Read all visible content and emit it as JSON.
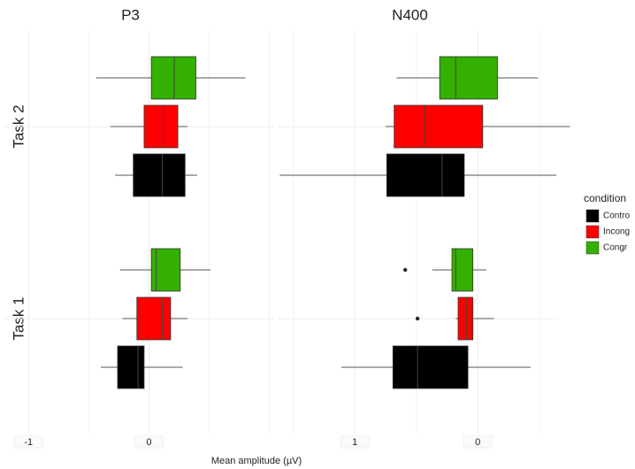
{
  "chart_data": {
    "type": "boxplot",
    "x_label": "Mean amplitude (µV)",
    "categories": [
      "Task 2",
      "Task 1"
    ],
    "legend_title": "condition",
    "legend_position": "right",
    "grid": true,
    "series": [
      {
        "name": "Contro",
        "color": "#000000"
      },
      {
        "name": "Incong",
        "color": "#ff0000"
      },
      {
        "name": "Congr",
        "color": "#33b000"
      }
    ],
    "panels": [
      {
        "title": "P3",
        "xlim": [
          -1.2,
          1.04
        ],
        "xticks": [
          -1,
          0
        ],
        "xminor_ticks": [
          -0.5,
          0.5,
          1
        ],
        "series": [
          {
            "stats": [
              {
                "min": -0.28,
                "q1": -0.13,
                "median": 0.11,
                "q3": 0.3,
                "max": 0.4,
                "outliers": []
              },
              {
                "min": -0.4,
                "q1": -0.26,
                "median": -0.09,
                "q3": -0.04,
                "max": 0.28,
                "outliers": []
              }
            ]
          },
          {
            "stats": [
              {
                "min": -0.32,
                "q1": -0.04,
                "median": 0.12,
                "q3": 0.24,
                "max": 0.32,
                "outliers": []
              },
              {
                "min": -0.22,
                "q1": -0.1,
                "median": 0.11,
                "q3": 0.18,
                "max": 0.32,
                "outliers": []
              }
            ]
          },
          {
            "stats": [
              {
                "min": -0.44,
                "q1": 0.02,
                "median": 0.21,
                "q3": 0.39,
                "max": 0.8,
                "outliers": []
              },
              {
                "min": -0.24,
                "q1": 0.02,
                "median": 0.06,
                "q3": 0.26,
                "max": 0.51,
                "outliers": []
              }
            ]
          }
        ]
      },
      {
        "title": "N400",
        "xlim": [
          1.62,
          -0.66
        ],
        "xticks": [
          1,
          0
        ],
        "xminor_ticks": [
          1.5,
          0.5,
          -0.5
        ],
        "series": [
          {
            "stats": [
              {
                "min": -0.64,
                "q1": 0.11,
                "median": 0.29,
                "q3": 0.74,
                "max": 1.61,
                "outliers": []
              },
              {
                "min": -0.43,
                "q1": 0.08,
                "median": 0.49,
                "q3": 0.69,
                "max": 1.11,
                "outliers": []
              }
            ]
          },
          {
            "stats": [
              {
                "min": -0.75,
                "q1": -0.04,
                "median": 0.43,
                "q3": 0.68,
                "max": 0.75,
                "outliers": []
              },
              {
                "min": -0.13,
                "q1": 0.04,
                "median": 0.09,
                "q3": 0.16,
                "max": 0.18,
                "outliers": [
                  0.49
                ]
              }
            ]
          },
          {
            "stats": [
              {
                "min": -0.49,
                "q1": -0.16,
                "median": 0.18,
                "q3": 0.31,
                "max": 0.66,
                "outliers": []
              },
              {
                "min": -0.07,
                "q1": 0.04,
                "median": 0.18,
                "q3": 0.21,
                "max": 0.37,
                "outliers": [
                  0.59
                ]
              }
            ]
          }
        ]
      }
    ]
  }
}
